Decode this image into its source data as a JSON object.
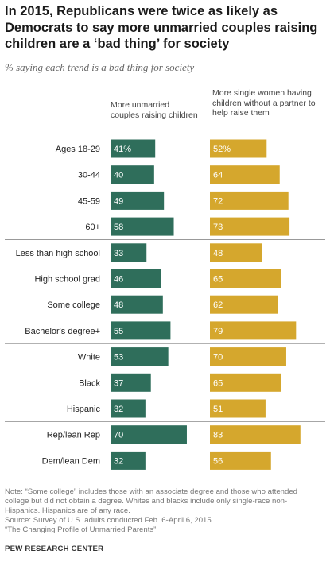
{
  "title": "In 2015, Republicans were twice as likely as Democrats to say more unmarried couples raising children are a ‘bad thing’ for society",
  "subtitle": {
    "before": "% saying each trend is a ",
    "underlined": "bad thing",
    "after": " for society"
  },
  "chart_data": {
    "type": "bar",
    "categories": [
      "Ages 18-29",
      "30-44",
      "45-59",
      "60+",
      "Less than high school",
      "High school grad",
      "Some college",
      "Bachelor's degree+",
      "White",
      "Black",
      "Hispanic",
      "Rep/lean Rep",
      "Dem/lean Dem"
    ],
    "groups": [
      4,
      4,
      3,
      2
    ],
    "series": [
      {
        "name": "More unmarried couples raising children",
        "values": [
          41,
          40,
          49,
          58,
          33,
          46,
          48,
          55,
          53,
          37,
          32,
          70,
          32
        ],
        "first_label_suffix": "%",
        "color": "#2f6e5b"
      },
      {
        "name": "More single women having children without a partner to help raise them",
        "values": [
          52,
          64,
          72,
          73,
          48,
          65,
          62,
          79,
          70,
          65,
          51,
          83,
          56
        ],
        "first_label_suffix": "%",
        "color": "#d5a72d"
      }
    ]
  },
  "note_lines": [
    "Note: “Some college” includes those with an associate degree and those who attended",
    "college but did not obtain a degree. Whites and blacks include only single-race non-",
    "Hispanics. Hispanics are of any race.",
    "Source: Survey of U.S. adults conducted Feb. 6-April 6, 2015.",
    "“The Changing Profile of Unmarried Parents”"
  ],
  "brand": "PEW RESEARCH CENTER"
}
